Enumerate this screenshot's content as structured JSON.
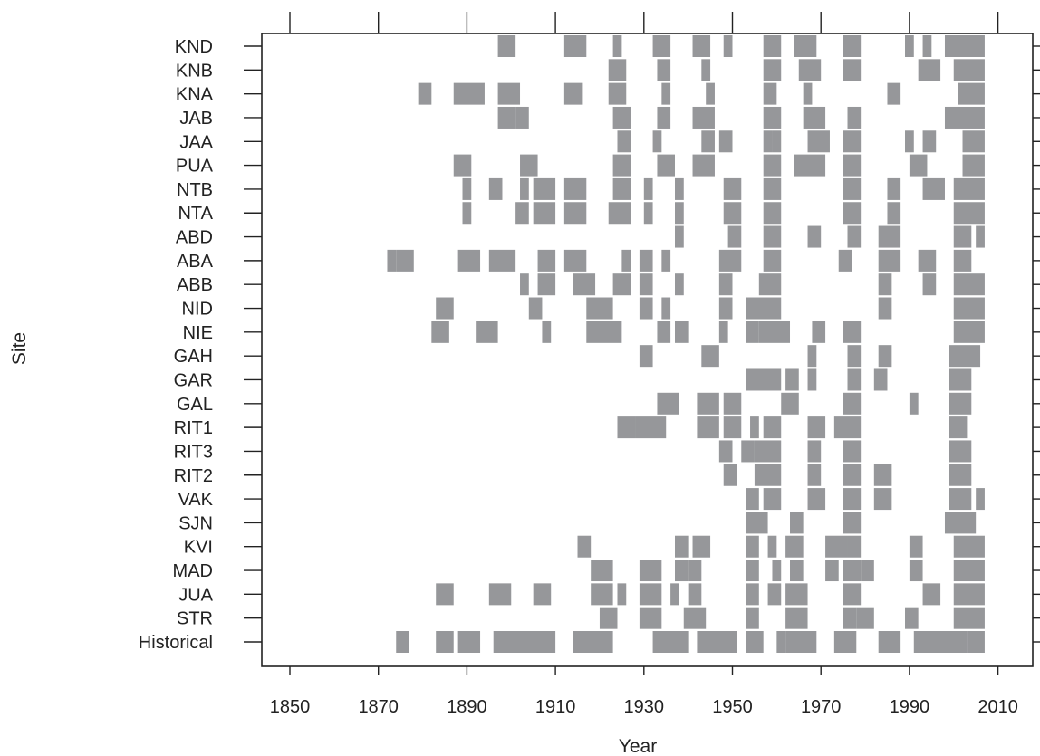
{
  "chart_data": {
    "type": "heatmap",
    "title": "",
    "xlabel": "Year",
    "ylabel": "Site",
    "xlim": [
      1838,
      2012
    ],
    "x_ticks": [
      1850,
      1870,
      1890,
      1910,
      1930,
      1950,
      1970,
      1990,
      2010
    ],
    "x_tick_labels": [
      "1850",
      "1870",
      "1890",
      "1910",
      "1930",
      "1950",
      "1970",
      "1990",
      "2010"
    ],
    "bar_color": "#96979a",
    "grid": false,
    "sites": [
      {
        "name": "KND",
        "intervals": [
          [
            1897,
            1901
          ],
          [
            1912,
            1917
          ],
          [
            1923,
            1925
          ],
          [
            1932,
            1936
          ],
          [
            1941,
            1945
          ],
          [
            1948,
            1950
          ],
          [
            1957,
            1961
          ],
          [
            1964,
            1969
          ],
          [
            1975,
            1979
          ],
          [
            1989,
            1991
          ],
          [
            1993,
            1995
          ],
          [
            1998,
            2007
          ]
        ]
      },
      {
        "name": "KNB",
        "intervals": [
          [
            1922,
            1926
          ],
          [
            1933,
            1936
          ],
          [
            1943,
            1945
          ],
          [
            1957,
            1961
          ],
          [
            1965,
            1970
          ],
          [
            1975,
            1979
          ],
          [
            1992,
            1997
          ],
          [
            2000,
            2007
          ]
        ]
      },
      {
        "name": "KNA",
        "intervals": [
          [
            1879,
            1882
          ],
          [
            1887,
            1894
          ],
          [
            1897,
            1902
          ],
          [
            1912,
            1916
          ],
          [
            1922,
            1926
          ],
          [
            1934,
            1936
          ],
          [
            1944,
            1946
          ],
          [
            1957,
            1960
          ],
          [
            1966,
            1968
          ],
          [
            1985,
            1988
          ],
          [
            2001,
            2007
          ]
        ]
      },
      {
        "name": "JAB",
        "intervals": [
          [
            1897,
            1901
          ],
          [
            1901,
            1904
          ],
          [
            1923,
            1927
          ],
          [
            1933,
            1936
          ],
          [
            1941,
            1946
          ],
          [
            1957,
            1961
          ],
          [
            1966,
            1971
          ],
          [
            1976,
            1979
          ],
          [
            1998,
            2007
          ]
        ]
      },
      {
        "name": "JAA",
        "intervals": [
          [
            1924,
            1927
          ],
          [
            1932,
            1934
          ],
          [
            1943,
            1946
          ],
          [
            1947,
            1950
          ],
          [
            1957,
            1959
          ],
          [
            1959,
            1961
          ],
          [
            1967,
            1972
          ],
          [
            1975,
            1979
          ],
          [
            1989,
            1991
          ],
          [
            1993,
            1996
          ],
          [
            2002,
            2007
          ]
        ]
      },
      {
        "name": "PUA",
        "intervals": [
          [
            1887,
            1891
          ],
          [
            1902,
            1906
          ],
          [
            1923,
            1927
          ],
          [
            1933,
            1937
          ],
          [
            1941,
            1946
          ],
          [
            1957,
            1961
          ],
          [
            1964,
            1971
          ],
          [
            1975,
            1979
          ],
          [
            1990,
            1994
          ],
          [
            2002,
            2007
          ]
        ]
      },
      {
        "name": "NTB",
        "intervals": [
          [
            1889,
            1891
          ],
          [
            1895,
            1898
          ],
          [
            1902,
            1904
          ],
          [
            1905,
            1910
          ],
          [
            1912,
            1917
          ],
          [
            1923,
            1927
          ],
          [
            1930,
            1932
          ],
          [
            1937,
            1939
          ],
          [
            1948,
            1952
          ],
          [
            1957,
            1961
          ],
          [
            1975,
            1979
          ],
          [
            1985,
            1988
          ],
          [
            1993,
            1998
          ],
          [
            2000,
            2007
          ]
        ]
      },
      {
        "name": "NTA",
        "intervals": [
          [
            1889,
            1891
          ],
          [
            1901,
            1904
          ],
          [
            1905,
            1910
          ],
          [
            1912,
            1917
          ],
          [
            1922,
            1927
          ],
          [
            1930,
            1932
          ],
          [
            1937,
            1939
          ],
          [
            1948,
            1952
          ],
          [
            1957,
            1961
          ],
          [
            1975,
            1979
          ],
          [
            1985,
            1988
          ],
          [
            2000,
            2007
          ]
        ]
      },
      {
        "name": "ABD",
        "intervals": [
          [
            1937,
            1939
          ],
          [
            1949,
            1952
          ],
          [
            1957,
            1961
          ],
          [
            1967,
            1970
          ],
          [
            1976,
            1979
          ],
          [
            1983,
            1988
          ],
          [
            2000,
            2004
          ],
          [
            2005,
            2007
          ]
        ]
      },
      {
        "name": "ABA",
        "intervals": [
          [
            1872,
            1874
          ],
          [
            1874,
            1878
          ],
          [
            1888,
            1893
          ],
          [
            1895,
            1901
          ],
          [
            1906,
            1910
          ],
          [
            1912,
            1917
          ],
          [
            1925,
            1927
          ],
          [
            1929,
            1932
          ],
          [
            1934,
            1936
          ],
          [
            1947,
            1952
          ],
          [
            1957,
            1961
          ],
          [
            1974,
            1977
          ],
          [
            1983,
            1988
          ],
          [
            1992,
            1996
          ],
          [
            2000,
            2004
          ]
        ]
      },
      {
        "name": "ABB",
        "intervals": [
          [
            1902,
            1904
          ],
          [
            1906,
            1910
          ],
          [
            1914,
            1919
          ],
          [
            1923,
            1927
          ],
          [
            1929,
            1932
          ],
          [
            1937,
            1939
          ],
          [
            1947,
            1950
          ],
          [
            1956,
            1961
          ],
          [
            1983,
            1986
          ],
          [
            1993,
            1996
          ],
          [
            2000,
            2007
          ]
        ]
      },
      {
        "name": "NID",
        "intervals": [
          [
            1883,
            1887
          ],
          [
            1904,
            1907
          ],
          [
            1917,
            1923
          ],
          [
            1929,
            1932
          ],
          [
            1934,
            1936
          ],
          [
            1947,
            1950
          ],
          [
            1953,
            1961
          ],
          [
            1983,
            1986
          ],
          [
            2000,
            2007
          ]
        ]
      },
      {
        "name": "NIE",
        "intervals": [
          [
            1882,
            1886
          ],
          [
            1892,
            1897
          ],
          [
            1907,
            1909
          ],
          [
            1917,
            1925
          ],
          [
            1933,
            1936
          ],
          [
            1937,
            1940
          ],
          [
            1947,
            1949
          ],
          [
            1953,
            1956
          ],
          [
            1956,
            1963
          ],
          [
            1968,
            1971
          ],
          [
            1975,
            1979
          ],
          [
            2000,
            2007
          ]
        ]
      },
      {
        "name": "GAH",
        "intervals": [
          [
            1929,
            1932
          ],
          [
            1943,
            1947
          ],
          [
            1967,
            1969
          ],
          [
            1976,
            1979
          ],
          [
            1983,
            1986
          ],
          [
            1999,
            2006
          ]
        ]
      },
      {
        "name": "GAR",
        "intervals": [
          [
            1953,
            1961
          ],
          [
            1962,
            1965
          ],
          [
            1967,
            1969
          ],
          [
            1976,
            1979
          ],
          [
            1982,
            1985
          ],
          [
            1999,
            2004
          ]
        ]
      },
      {
        "name": "GAL",
        "intervals": [
          [
            1933,
            1938
          ],
          [
            1942,
            1947
          ],
          [
            1948,
            1952
          ],
          [
            1961,
            1965
          ],
          [
            1975,
            1979
          ],
          [
            1990,
            1992
          ],
          [
            1999,
            2004
          ]
        ]
      },
      {
        "name": "RIT1",
        "intervals": [
          [
            1924,
            1928
          ],
          [
            1928,
            1935
          ],
          [
            1942,
            1947
          ],
          [
            1948,
            1952
          ],
          [
            1954,
            1956
          ],
          [
            1957,
            1961
          ],
          [
            1967,
            1971
          ],
          [
            1973,
            1979
          ],
          [
            1999,
            2003
          ]
        ]
      },
      {
        "name": "RIT3",
        "intervals": [
          [
            1947,
            1950
          ],
          [
            1952,
            1955
          ],
          [
            1955,
            1961
          ],
          [
            1967,
            1970
          ],
          [
            1975,
            1979
          ],
          [
            1999,
            2004
          ]
        ]
      },
      {
        "name": "RIT2",
        "intervals": [
          [
            1948,
            1951
          ],
          [
            1955,
            1961
          ],
          [
            1967,
            1970
          ],
          [
            1975,
            1979
          ],
          [
            1982,
            1986
          ],
          [
            1999,
            2004
          ]
        ]
      },
      {
        "name": "VAK",
        "intervals": [
          [
            1953,
            1956
          ],
          [
            1957,
            1961
          ],
          [
            1967,
            1971
          ],
          [
            1975,
            1979
          ],
          [
            1982,
            1986
          ],
          [
            1999,
            2004
          ],
          [
            2005,
            2007
          ]
        ]
      },
      {
        "name": "SJN",
        "intervals": [
          [
            1953,
            1958
          ],
          [
            1963,
            1966
          ],
          [
            1975,
            1979
          ],
          [
            1998,
            2005
          ]
        ]
      },
      {
        "name": "KVI",
        "intervals": [
          [
            1915,
            1918
          ],
          [
            1937,
            1940
          ],
          [
            1941,
            1945
          ],
          [
            1953,
            1956
          ],
          [
            1958,
            1960
          ],
          [
            1962,
            1966
          ],
          [
            1971,
            1976
          ],
          [
            1976,
            1979
          ],
          [
            1990,
            1993
          ],
          [
            2000,
            2007
          ]
        ]
      },
      {
        "name": "MAD",
        "intervals": [
          [
            1918,
            1923
          ],
          [
            1929,
            1934
          ],
          [
            1937,
            1940
          ],
          [
            1940,
            1943
          ],
          [
            1953,
            1956
          ],
          [
            1959,
            1961
          ],
          [
            1963,
            1966
          ],
          [
            1971,
            1974
          ],
          [
            1975,
            1979
          ],
          [
            1979,
            1982
          ],
          [
            1990,
            1993
          ],
          [
            2000,
            2007
          ]
        ]
      },
      {
        "name": "JUA",
        "intervals": [
          [
            1883,
            1887
          ],
          [
            1895,
            1900
          ],
          [
            1905,
            1909
          ],
          [
            1918,
            1923
          ],
          [
            1924,
            1926
          ],
          [
            1929,
            1934
          ],
          [
            1936,
            1938
          ],
          [
            1940,
            1943
          ],
          [
            1953,
            1956
          ],
          [
            1958,
            1961
          ],
          [
            1962,
            1967
          ],
          [
            1975,
            1979
          ],
          [
            1993,
            1997
          ],
          [
            2000,
            2007
          ]
        ]
      },
      {
        "name": "STR",
        "intervals": [
          [
            1920,
            1924
          ],
          [
            1929,
            1934
          ],
          [
            1939,
            1944
          ],
          [
            1953,
            1956
          ],
          [
            1962,
            1967
          ],
          [
            1975,
            1978
          ],
          [
            1978,
            1982
          ],
          [
            1989,
            1992
          ],
          [
            2000,
            2007
          ]
        ]
      },
      {
        "name": "Historical",
        "intervals": [
          [
            1874,
            1877
          ],
          [
            1883,
            1887
          ],
          [
            1888,
            1893
          ],
          [
            1896,
            1910
          ],
          [
            1914,
            1923
          ],
          [
            1932,
            1940
          ],
          [
            1942,
            1951
          ],
          [
            1953,
            1957
          ],
          [
            1960,
            1962
          ],
          [
            1962,
            1969
          ],
          [
            1973,
            1978
          ],
          [
            1983,
            1988
          ],
          [
            1991,
            2003
          ],
          [
            2003,
            2007
          ]
        ]
      }
    ]
  }
}
